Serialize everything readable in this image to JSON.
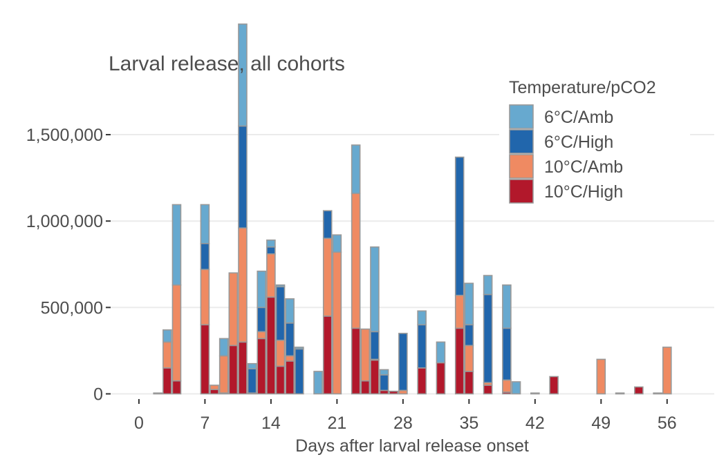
{
  "chart_data": {
    "type": "bar",
    "stacked": true,
    "title": "Larval release, all cohorts",
    "xlabel": "Days after larval release onset",
    "ylabel": "",
    "xlim": [
      -3,
      61
    ],
    "ylim": [
      -30000,
      1680000
    ],
    "x_ticks": [
      0,
      7,
      14,
      21,
      28,
      35,
      42,
      49,
      56
    ],
    "x_tick_labels": [
      "0",
      "7",
      "14",
      "21",
      "28",
      "35",
      "42",
      "49",
      "56"
    ],
    "y_ticks": [
      0,
      500000,
      1000000,
      1500000
    ],
    "y_tick_labels": [
      "0",
      "500,000",
      "1,000,000",
      "1,500,000"
    ],
    "grid": true,
    "legend": {
      "title": "Temperature/pCO2",
      "position": "top-right",
      "entries": [
        {
          "label": "6°C/Amb",
          "color": "#67a9cf"
        },
        {
          "label": "6°C/High",
          "color": "#2166ac"
        },
        {
          "label": "10°C/Amb",
          "color": "#ef8a62"
        },
        {
          "label": "10°C/High",
          "color": "#b2182b"
        }
      ]
    },
    "series": [
      {
        "name": "10°C/High",
        "color": "#b2182b",
        "x": [
          3,
          4,
          7,
          8,
          9,
          10,
          11,
          12,
          13,
          14,
          15,
          16,
          20,
          23,
          24,
          25,
          26,
          27,
          30,
          32,
          34,
          35,
          37,
          39,
          44,
          53
        ],
        "values": [
          150000,
          75000,
          400000,
          25000,
          5000,
          280000,
          300000,
          5000,
          320000,
          560000,
          160000,
          190000,
          450000,
          380000,
          75000,
          195000,
          20000,
          15000,
          150000,
          180000,
          380000,
          130000,
          50000,
          10000,
          100000,
          40000
        ]
      },
      {
        "name": "10°C/Amb",
        "color": "#ef8a62",
        "x": [
          3,
          4,
          7,
          8,
          9,
          10,
          11,
          13,
          14,
          15,
          16,
          20,
          21,
          23,
          24,
          25,
          26,
          27,
          28,
          34,
          35,
          37,
          39,
          49,
          56
        ],
        "values": [
          150000,
          555000,
          320000,
          25000,
          215000,
          420000,
          660000,
          40000,
          250000,
          150000,
          30000,
          450000,
          820000,
          780000,
          300000,
          5000,
          0,
          0,
          20000,
          190000,
          150000,
          15000,
          70000,
          200000,
          270000
        ]
      },
      {
        "name": "6°C/High",
        "color": "#2166ac",
        "x": [
          7,
          11,
          12,
          13,
          14,
          15,
          16,
          20,
          21,
          25,
          26,
          28,
          30,
          34,
          35,
          37,
          39
        ],
        "values": [
          150000,
          590000,
          140000,
          140000,
          40000,
          310000,
          190000,
          160000,
          0,
          160000,
          90000,
          330000,
          250000,
          800000,
          120000,
          510000,
          300000
        ]
      },
      {
        "name": "6°C/High",
        "color": "#2166ac",
        "x": [
          17
        ],
        "values": [
          260000
        ]
      },
      {
        "name": "6°C/Amb",
        "color": "#67a9cf",
        "x": [
          2,
          3,
          4,
          7,
          9,
          11,
          12,
          13,
          14,
          15,
          16,
          17,
          19,
          20,
          21,
          23,
          25,
          26,
          30,
          32,
          35,
          37,
          39,
          40,
          42,
          51,
          55
        ],
        "values": [
          5000,
          70000,
          465000,
          225000,
          100000,
          590000,
          30000,
          210000,
          40000,
          10000,
          140000,
          10000,
          130000,
          0,
          100000,
          280000,
          490000,
          30000,
          80000,
          120000,
          240000,
          110000,
          250000,
          70000,
          5000,
          5000,
          5000
        ]
      }
    ]
  }
}
